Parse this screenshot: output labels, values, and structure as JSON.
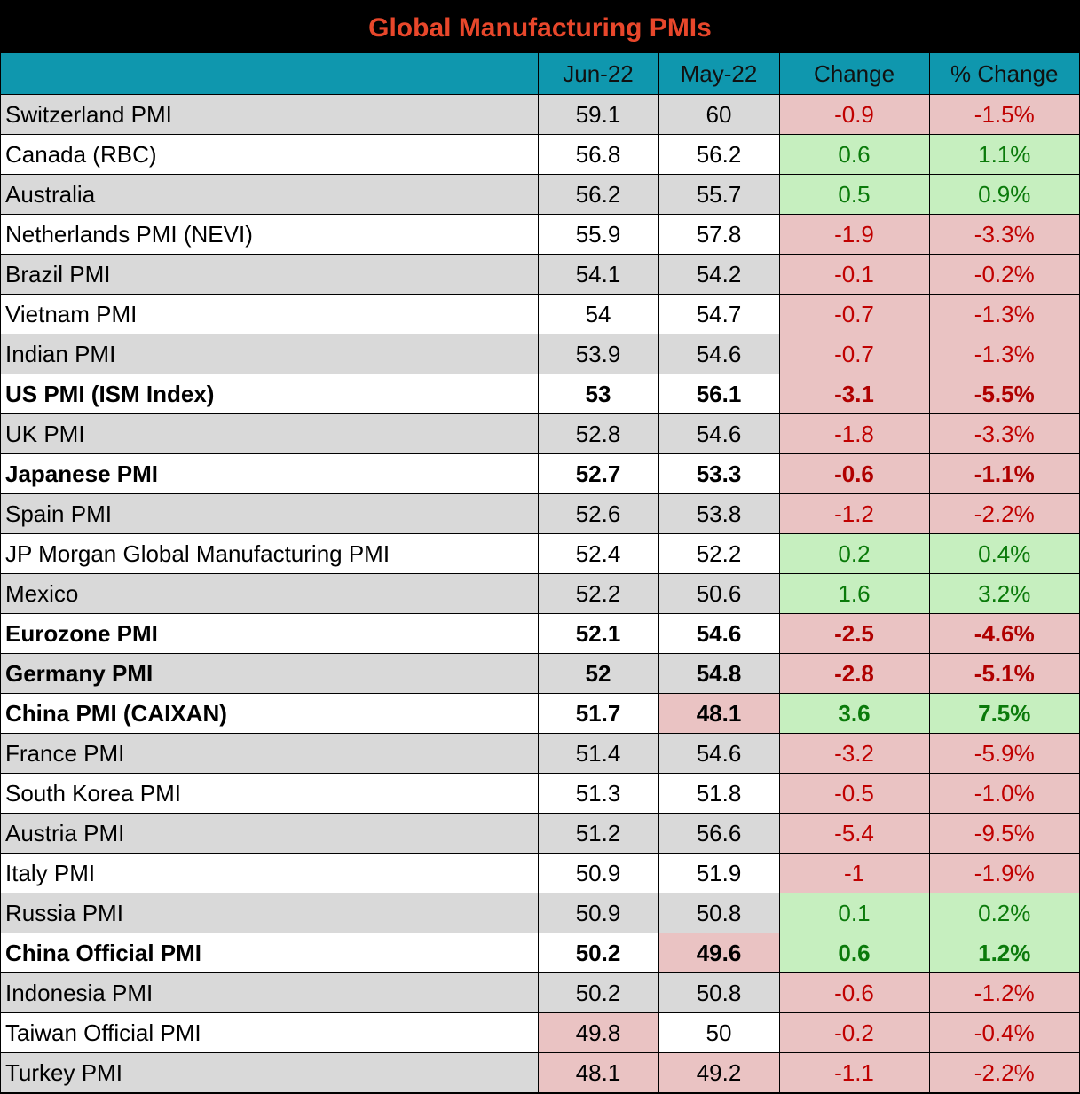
{
  "chart_data": {
    "type": "table",
    "title": "Global Manufacturing PMIs",
    "columns": [
      "",
      "Jun-22",
      "May-22",
      "Change",
      "% Change"
    ],
    "rows": [
      {
        "name": "Switzerland PMI",
        "jun": "59.1",
        "may": "60",
        "change": "-0.9",
        "pct": "-1.5%",
        "bold": false
      },
      {
        "name": "Canada (RBC)",
        "jun": "56.8",
        "may": "56.2",
        "change": "0.6",
        "pct": "1.1%",
        "bold": false
      },
      {
        "name": "Australia",
        "jun": "56.2",
        "may": "55.7",
        "change": "0.5",
        "pct": "0.9%",
        "bold": false
      },
      {
        "name": "Netherlands PMI (NEVI)",
        "jun": "55.9",
        "may": "57.8",
        "change": "-1.9",
        "pct": "-3.3%",
        "bold": false
      },
      {
        "name": "Brazil PMI",
        "jun": "54.1",
        "may": "54.2",
        "change": "-0.1",
        "pct": "-0.2%",
        "bold": false
      },
      {
        "name": "Vietnam PMI",
        "jun": "54",
        "may": "54.7",
        "change": "-0.7",
        "pct": "-1.3%",
        "bold": false
      },
      {
        "name": "Indian PMI",
        "jun": "53.9",
        "may": "54.6",
        "change": "-0.7",
        "pct": "-1.3%",
        "bold": false
      },
      {
        "name": "US PMI (ISM Index)",
        "jun": "53",
        "may": "56.1",
        "change": "-3.1",
        "pct": "-5.5%",
        "bold": true
      },
      {
        "name": "UK PMI",
        "jun": "52.8",
        "may": "54.6",
        "change": "-1.8",
        "pct": "-3.3%",
        "bold": false
      },
      {
        "name": "Japanese PMI",
        "jun": "52.7",
        "may": "53.3",
        "change": "-0.6",
        "pct": "-1.1%",
        "bold": true
      },
      {
        "name": "Spain PMI",
        "jun": "52.6",
        "may": "53.8",
        "change": "-1.2",
        "pct": "-2.2%",
        "bold": false
      },
      {
        "name": "JP Morgan Global Manufacturing PMI",
        "jun": "52.4",
        "may": "52.2",
        "change": "0.2",
        "pct": "0.4%",
        "bold": false
      },
      {
        "name": "Mexico",
        "jun": "52.2",
        "may": "50.6",
        "change": "1.6",
        "pct": "3.2%",
        "bold": false
      },
      {
        "name": "Eurozone PMI",
        "jun": "52.1",
        "may": "54.6",
        "change": "-2.5",
        "pct": "-4.6%",
        "bold": true
      },
      {
        "name": "Germany PMI",
        "jun": "52",
        "may": "54.8",
        "change": "-2.8",
        "pct": "-5.1%",
        "bold": true
      },
      {
        "name": "China PMI (CAIXAN)",
        "jun": "51.7",
        "may": "48.1",
        "change": "3.6",
        "pct": "7.5%",
        "bold": true
      },
      {
        "name": "France PMI",
        "jun": "51.4",
        "may": "54.6",
        "change": "-3.2",
        "pct": "-5.9%",
        "bold": false
      },
      {
        "name": "South Korea PMI",
        "jun": "51.3",
        "may": "51.8",
        "change": "-0.5",
        "pct": "-1.0%",
        "bold": false
      },
      {
        "name": "Austria PMI",
        "jun": "51.2",
        "may": "56.6",
        "change": "-5.4",
        "pct": "-9.5%",
        "bold": false
      },
      {
        "name": "Italy PMI",
        "jun": "50.9",
        "may": "51.9",
        "change": "-1",
        "pct": "-1.9%",
        "bold": false
      },
      {
        "name": "Russia PMI",
        "jun": "50.9",
        "may": "50.8",
        "change": "0.1",
        "pct": "0.2%",
        "bold": false
      },
      {
        "name": "China Official PMI",
        "jun": "50.2",
        "may": "49.6",
        "change": "0.6",
        "pct": "1.2%",
        "bold": true
      },
      {
        "name": "Indonesia PMI",
        "jun": "50.2",
        "may": "50.8",
        "change": "-0.6",
        "pct": "-1.2%",
        "bold": false
      },
      {
        "name": "Taiwan Official PMI",
        "jun": "49.8",
        "may": "50",
        "change": "-0.2",
        "pct": "-0.4%",
        "bold": false
      },
      {
        "name": "Turkey PMI",
        "jun": "48.1",
        "may": "49.2",
        "change": "-1.1",
        "pct": "-2.2%",
        "bold": false
      }
    ]
  },
  "colors": {
    "title_bg": "#000000",
    "title_text": "#e8472b",
    "header_bg": "#0f97ae",
    "row_shade": "#d9d9d9",
    "negative_bg": "#eac3c3",
    "negative_text": "#c00000",
    "positive_bg": "#c6efbf",
    "positive_text": "#0a7a0a"
  }
}
